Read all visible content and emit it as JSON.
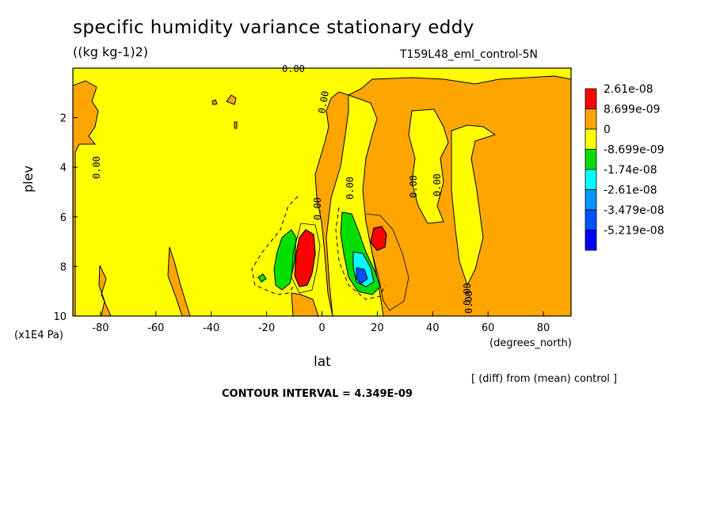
{
  "chart_data": {
    "type": "heatmap",
    "title": "specific humidity variance stationary eddy",
    "units": "((kg kg-1)2)",
    "run_label": "T159L48_eml_control-5N",
    "xlabel": "lat",
    "x_units": "(degrees_north)",
    "ylabel": "plev",
    "y_units": "(x1E4 Pa)",
    "x_ticks": [
      "-80",
      "-60",
      "-40",
      "-20",
      "0",
      "20",
      "40",
      "60",
      "80"
    ],
    "y_ticks": [
      "2",
      "4",
      "6",
      "8",
      "10"
    ],
    "xlim": [
      -90,
      90
    ],
    "ylim": [
      10,
      0
    ],
    "legend": {
      "placement": "right",
      "levels": [
        "2.61e-08",
        "8.699e-09",
        "0",
        "-8.699e-09",
        "-1.74e-08",
        "-2.61e-08",
        "-3.479e-08",
        "-5.219e-08"
      ],
      "colors": [
        "#ff0000",
        "#ffa500",
        "#ffff00",
        "#00e000",
        "#00ffff",
        "#0096ff",
        "#0050ff",
        "#0000ff"
      ]
    },
    "contour_labels": [
      "0.00",
      "0.00",
      "0.00",
      "0.00",
      "0.00",
      "0.00",
      "0.00",
      "0.00",
      "0.00"
    ],
    "diff_note": "[ (diff) from (mean) control ]",
    "contour_interval": "CONTOUR INTERVAL = 4.349E-09",
    "background_regions": [
      {
        "level": "8.699e-09",
        "desc": "positive"
      },
      {
        "level": "0",
        "desc": "near zero"
      }
    ]
  }
}
